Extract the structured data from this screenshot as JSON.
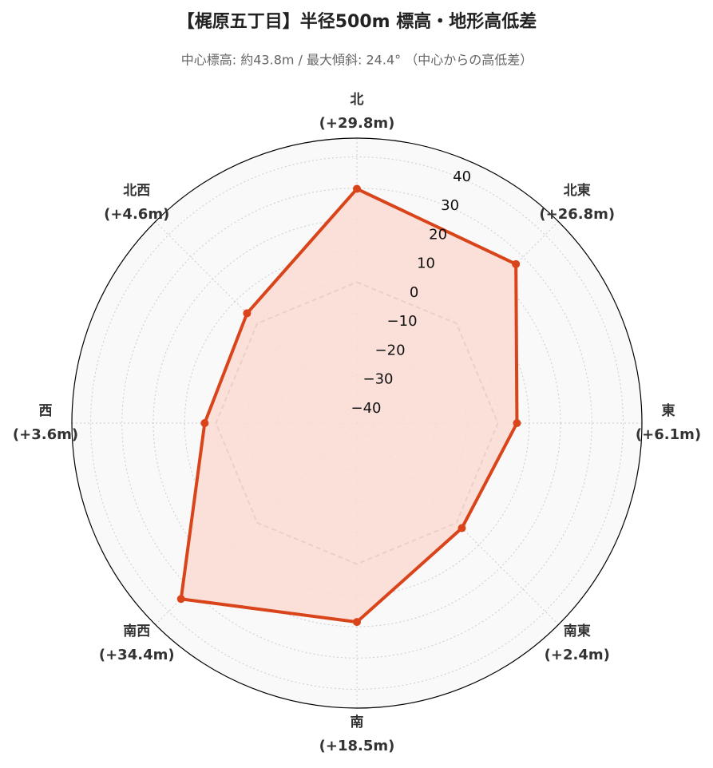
{
  "chart_data": {
    "type": "radar",
    "title": "【梶原五丁目】半径500m 標高・地形高低差",
    "subtitle": "中心標高: 約43.8m / 最大傾斜: 24.4° （中心からの高低差）",
    "categories": [
      "北",
      "北東",
      "東",
      "南東",
      "南",
      "南西",
      "西",
      "北西"
    ],
    "values": [
      29.8,
      26.8,
      6.1,
      2.4,
      18.5,
      34.4,
      3.6,
      4.6
    ],
    "value_labels": [
      "(+29.8m)",
      "(+26.8m)",
      "(+6.1m)",
      "(+2.4m)",
      "(+18.5m)",
      "(+34.4m)",
      "(+3.6m)",
      "(+4.6m)"
    ],
    "color": "#d9441a",
    "fill_color": "#fcdcd4",
    "baseline": 0,
    "ylim": [
      -45,
      46
    ],
    "yticks": [
      {
        "value": -40,
        "label": "−40"
      },
      {
        "value": -30,
        "label": "−30"
      },
      {
        "value": -20,
        "label": "−20"
      },
      {
        "value": -10,
        "label": "−10"
      },
      0,
      10,
      20,
      30,
      40
    ],
    "grid": true
  }
}
